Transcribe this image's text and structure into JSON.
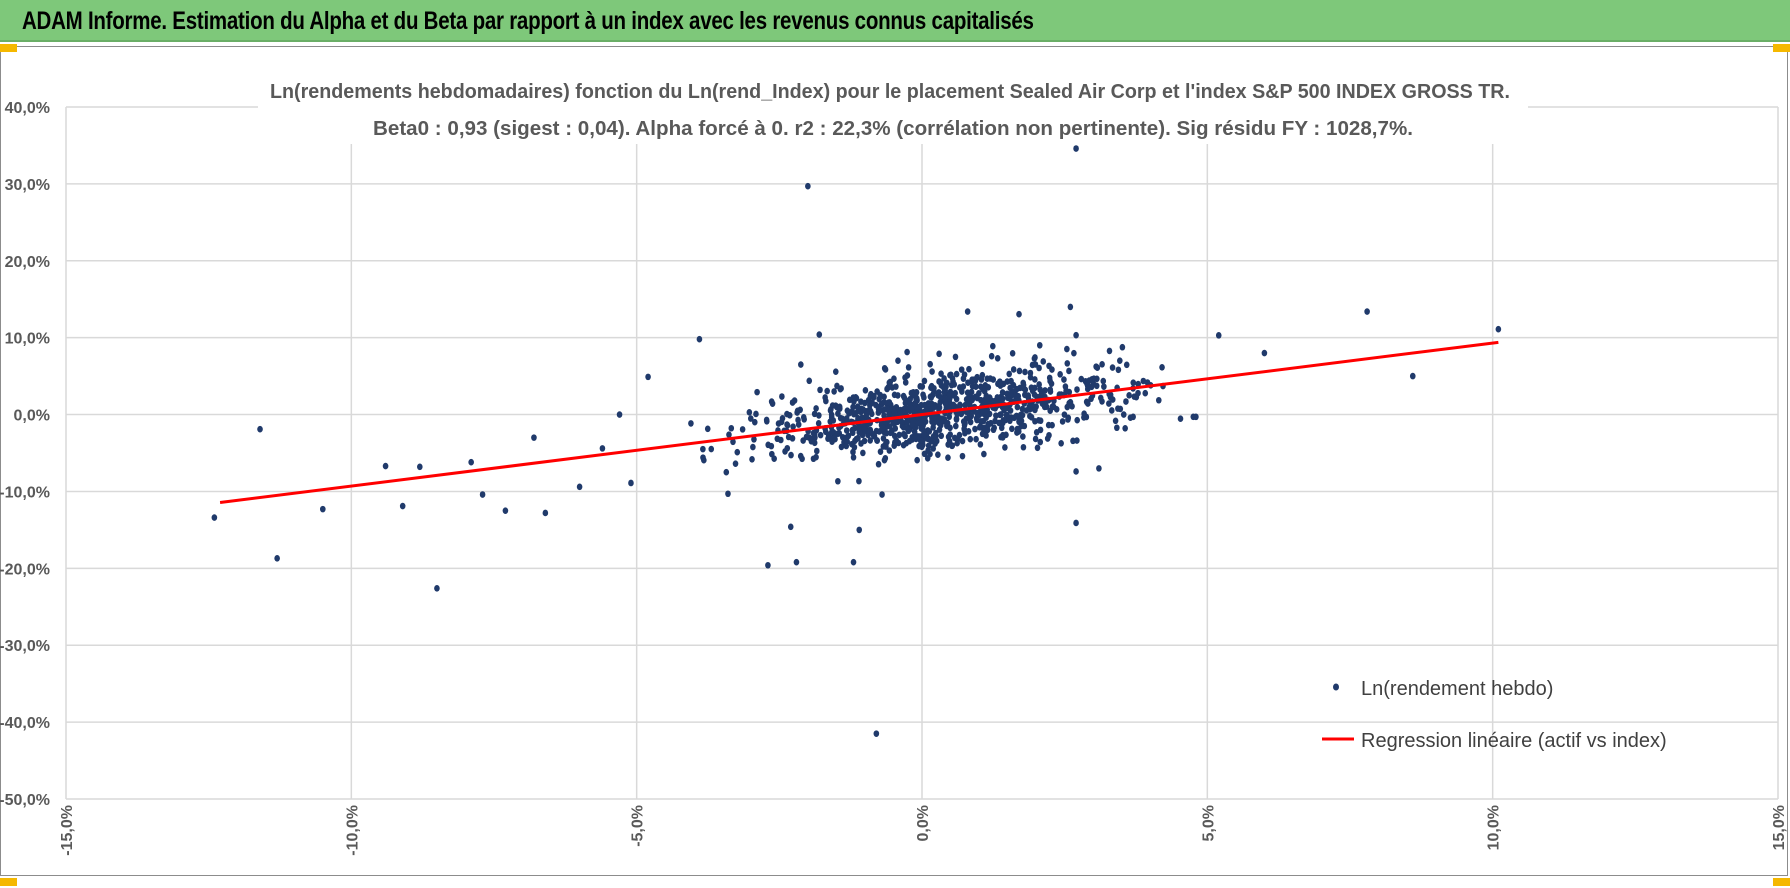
{
  "header": {
    "title": "ADAM Informe. Estimation du Alpha et du Beta par rapport à un index avec les revenus connus capitalisés"
  },
  "chart_data": {
    "type": "scatter",
    "title_line1": "Ln(rendements hebdomadaires) fonction du Ln(rend_Index) pour le placement Sealed Air Corp et l'index S&P 500 INDEX GROSS TR.",
    "title_line2": "Beta0 : 0,93 (sigest : 0,04).  Alpha forcé à 0. r2 : 22,3% (corrélation non pertinente). Sig résidu FY : 1028,7%.",
    "xlim": [
      -15,
      15
    ],
    "ylim": [
      -50,
      40
    ],
    "x_ticks": [
      -15,
      -10,
      -5,
      0,
      5,
      10,
      15
    ],
    "x_tick_labels": [
      "-15,0%",
      "-10,0%",
      "-5,0%",
      "0,0%",
      "5,0%",
      "10,0%",
      "15,0%"
    ],
    "y_ticks": [
      40,
      30,
      20,
      10,
      0,
      -10,
      -20,
      -30,
      -40,
      -50
    ],
    "y_tick_labels": [
      "40,0%",
      "30,0%",
      "20,0%",
      "10,0%",
      "0,0%",
      "-10,0%",
      "-20,0%",
      "-30,0%",
      "-40,0%",
      "-50,0%"
    ],
    "grid": true,
    "legend_position": "bottom-right",
    "colors": {
      "points": "#203a6b",
      "regression": "#ff0000",
      "grid": "#d9d9d9"
    },
    "series": [
      {
        "name": "Ln(rendement hebdo)",
        "type": "scatter",
        "points": [
          [
            -2.0,
            29.7
          ],
          [
            2.7,
            34.6
          ],
          [
            -0.8,
            -41.5
          ],
          [
            -12.4,
            -13.4
          ],
          [
            -11.6,
            -1.9
          ],
          [
            -11.3,
            -18.7
          ],
          [
            -10.5,
            -12.3
          ],
          [
            -8.5,
            -22.6
          ],
          [
            7.8,
            13.4
          ],
          [
            10.1,
            11.1
          ],
          [
            8.6,
            5.0
          ],
          [
            6.0,
            8.0
          ],
          [
            2.6,
            14.0
          ],
          [
            2.7,
            -14.1
          ],
          [
            -2.3,
            -14.6
          ],
          [
            -2.2,
            -19.2
          ],
          [
            -2.7,
            -19.6
          ],
          [
            -1.2,
            -19.2
          ],
          [
            -1.1,
            -15.0
          ],
          [
            -3.9,
            9.8
          ],
          [
            -1.8,
            10.4
          ],
          [
            0.8,
            13.4
          ],
          [
            0.3,
            7.9
          ],
          [
            5.2,
            10.3
          ],
          [
            4.8,
            -0.3
          ],
          [
            -9.4,
            -6.7
          ],
          [
            -9.1,
            -11.9
          ],
          [
            -7.7,
            -10.4
          ],
          [
            -7.3,
            -12.5
          ],
          [
            -6.8,
            -3.0
          ],
          [
            -6.6,
            -12.8
          ],
          [
            -5.3,
            0.0
          ],
          [
            -4.8,
            4.9
          ],
          [
            -5.1,
            -8.9
          ],
          [
            -3.4,
            -10.3
          ],
          [
            -0.7,
            -10.4
          ],
          [
            3.1,
            -7.0
          ],
          [
            2.7,
            -7.4
          ],
          [
            3.7,
            -0.3
          ],
          [
            -8.8,
            -6.8
          ],
          [
            -7.9,
            -6.2
          ],
          [
            -6.0,
            -9.4
          ],
          [
            -5.6,
            -4.4
          ]
        ],
        "bulk": {
          "count": 950,
          "x_mean": 0.4,
          "x_sd": 1.6,
          "slope": 0.93,
          "residual_sd": 3.0,
          "seed": 7
        }
      },
      {
        "name": "Regression linéaire (actif vs index)",
        "type": "line",
        "slope": 0.93,
        "intercept": 0,
        "x_range": [
          -12.3,
          10.1
        ]
      }
    ]
  }
}
